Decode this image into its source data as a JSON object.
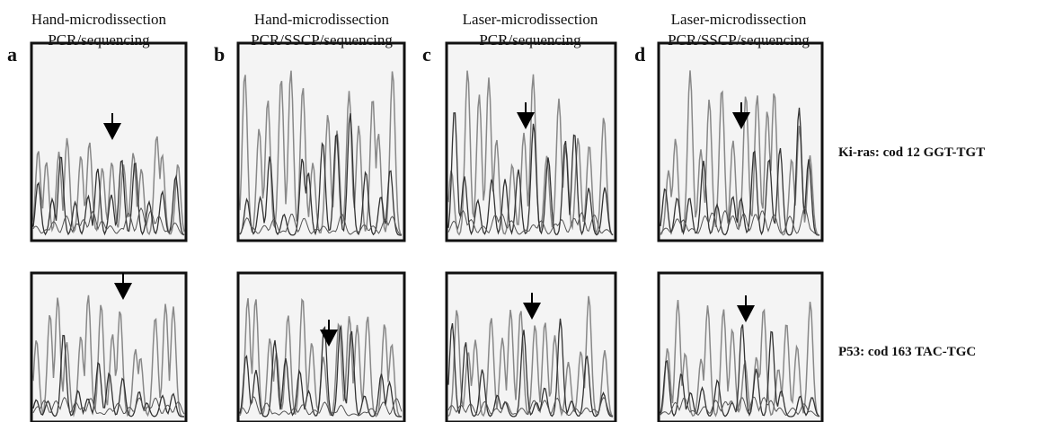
{
  "columns": [
    {
      "letter": "a",
      "line1": "Hand-microdissection",
      "line2": "PCR/sequencing"
    },
    {
      "letter": "b",
      "line1": "Hand-microdissection",
      "line2": "PCR/SSCP/sequencing"
    },
    {
      "letter": "c",
      "line1": "Laser-microdissection",
      "line2": "PCR/sequencing"
    },
    {
      "letter": "d",
      "line1": "Laser-microdissection",
      "line2": "PCR/SSCP/sequencing"
    }
  ],
  "row_labels": [
    "Ki-ras: cod 12 GGT-TGT",
    "P53: cod 163 TAC-TGC"
  ]
}
